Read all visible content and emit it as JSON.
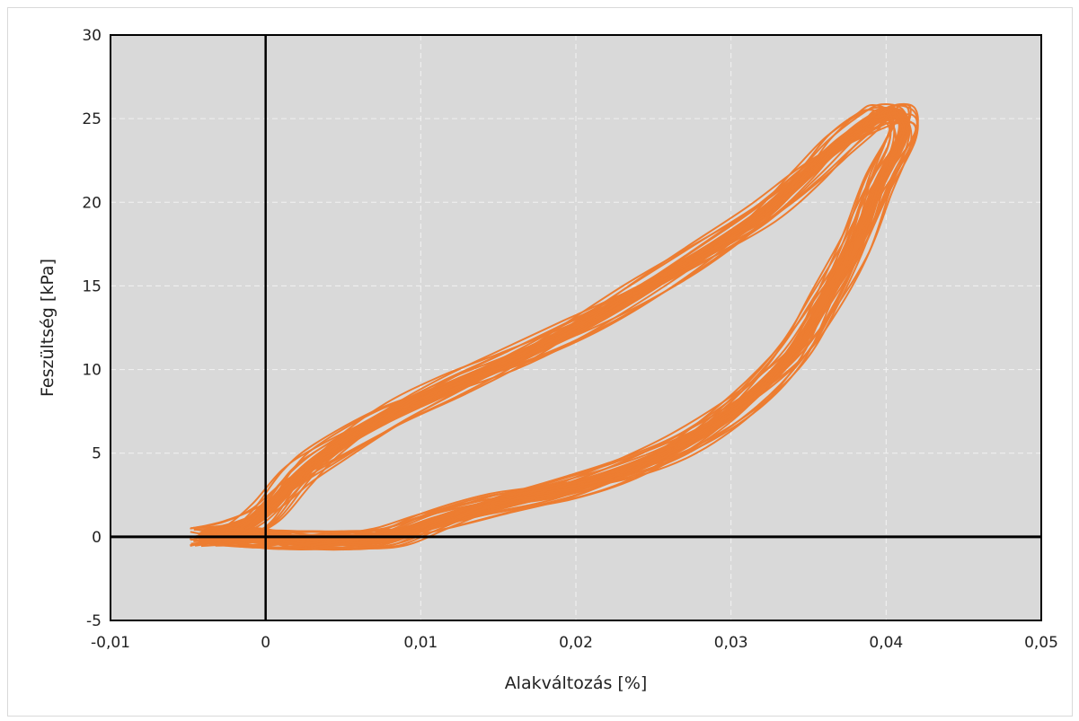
{
  "chart_data": {
    "type": "line",
    "title": "",
    "xlabel": "Alakváltozás [%]",
    "ylabel": "Feszültség [kPa]",
    "xlim": [
      -0.01,
      0.05
    ],
    "ylim": [
      -5,
      30
    ],
    "xticks": [
      -0.01,
      0,
      0.01,
      0.02,
      0.03,
      0.04,
      0.05
    ],
    "xtick_labels": [
      "-0,01",
      "0",
      "0,01",
      "0,02",
      "0,03",
      "0,04",
      "0,05"
    ],
    "yticks": [
      -5,
      0,
      5,
      10,
      15,
      20,
      25,
      30
    ],
    "ytick_labels": [
      "-5",
      "0",
      "5",
      "10",
      "15",
      "20",
      "25",
      "30"
    ],
    "grid": true,
    "legend": "none",
    "plot_background": "#d9d9d9",
    "series_color": "#ed7d31",
    "series": [
      {
        "x": [
          -0.004,
          -0.002,
          0.0,
          0.002,
          0.004,
          0.008,
          0.012,
          0.016,
          0.02,
          0.024,
          0.028,
          0.032,
          0.035,
          0.037,
          0.039,
          0.04,
          0.041,
          0.041,
          0.0395,
          0.038,
          0.036,
          0.034,
          0.031,
          0.027,
          0.023,
          0.019,
          0.015,
          0.011,
          0.008,
          0.005,
          0.002,
          0.0,
          -0.002,
          -0.004
        ],
        "y": [
          0.0,
          0.4,
          1.5,
          3.5,
          5.0,
          7.3,
          9.0,
          10.6,
          12.5,
          14.6,
          16.8,
          19.3,
          21.8,
          23.5,
          24.8,
          25.3,
          25.1,
          23.8,
          21.0,
          17.5,
          14.0,
          11.0,
          8.2,
          5.6,
          3.9,
          2.8,
          2.0,
          0.9,
          0.0,
          -0.2,
          -0.2,
          -0.1,
          0.0,
          0.0
        ]
      }
    ]
  }
}
